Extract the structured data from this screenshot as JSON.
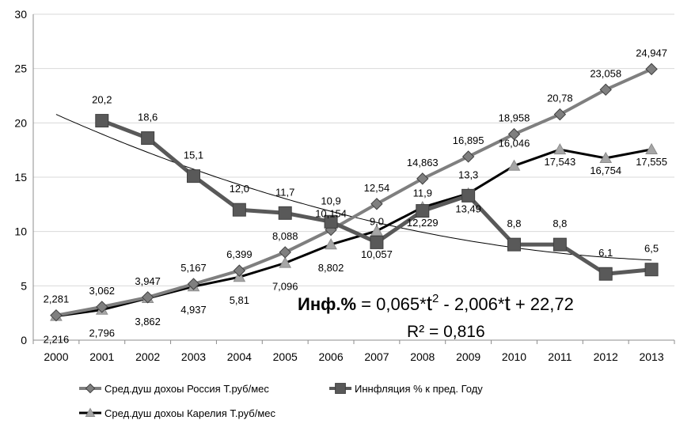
{
  "chart_data": {
    "type": "line",
    "categories": [
      "2000",
      "2001",
      "2002",
      "2003",
      "2004",
      "2005",
      "2006",
      "2007",
      "2008",
      "2009",
      "2010",
      "2011",
      "2012",
      "2013"
    ],
    "ylim": [
      0,
      30
    ],
    "yticks": [
      0,
      5,
      10,
      15,
      20,
      25,
      30
    ],
    "grid": "horizontal",
    "legend_position": "bottom",
    "series": [
      {
        "name": "Сред.душ дохоы Россия Т.руб/мес",
        "color": "#7f7f7f",
        "marker": "diamond",
        "values": [
          2.281,
          3.062,
          3.947,
          5.167,
          6.399,
          8.088,
          10.154,
          12.54,
          14.863,
          16.895,
          18.958,
          20.78,
          23.058,
          24.947
        ],
        "labels": [
          "2,281",
          "3,062",
          "3,947",
          "5,167",
          "6,399",
          "8,088",
          "10,154",
          "12,54",
          "14,863",
          "16,895",
          "18,958",
          "20,78",
          "23,058",
          "24,947"
        ]
      },
      {
        "name": "Иннфляция % к пред. Году",
        "color": "#595959",
        "marker": "square",
        "values": [
          null,
          20.2,
          18.6,
          15.1,
          12.0,
          11.7,
          10.9,
          9.0,
          11.9,
          13.3,
          8.8,
          8.8,
          6.1,
          6.5
        ],
        "labels": [
          null,
          "20,2",
          "18,6",
          "15,1",
          "12,0",
          "11,7",
          "10,9",
          "9,0",
          "11,9",
          "13,3",
          "8,8",
          "8,8",
          "6,1",
          "6,5"
        ]
      },
      {
        "name": "Сред.душ дохоы Карелия Т.руб/мес",
        "color": "#000000",
        "marker": "triangle",
        "values": [
          2.216,
          2.796,
          3.862,
          4.937,
          5.81,
          7.096,
          8.802,
          10.057,
          12.229,
          13.49,
          16.046,
          17.543,
          16.754,
          17.555
        ],
        "labels": [
          "2,216",
          "2,796",
          "3,862",
          "4,937",
          "5,81",
          "7,096",
          "8,802",
          "10,057",
          "12,229",
          "13,49",
          "16,046",
          "17,543",
          "16,754",
          "17,555"
        ]
      }
    ],
    "trendline": {
      "for_series": "Иннфляция % к пред. Году",
      "coefficients": [
        0.065,
        -2.006,
        22.72
      ],
      "equation": {
        "prefix": "Инф.%",
        "part1": " = 0,065*",
        "t": "t",
        "sup": "2",
        "part2": " - 2,006*",
        "part3": " + 22,72"
      },
      "r2": "R² = 0,816"
    }
  }
}
